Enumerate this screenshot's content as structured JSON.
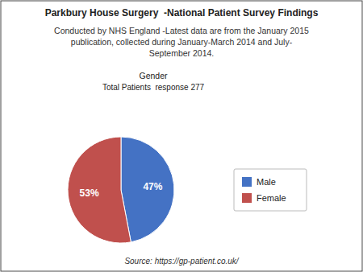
{
  "chart_data": {
    "type": "pie",
    "title": "Parkbury House Surgery  -National Patient Survey Findings",
    "subtitle": "Conducted by NHS England -Latest data are from the January 2015\npublication, collected during January-March 2014 and July-\nSeptember 2014.",
    "annotations": [
      "Gender",
      "Total Patients  response 277"
    ],
    "source": "Source: https://gp-patient.co.uk/",
    "categories": [
      "Male",
      "Female"
    ],
    "values": [
      47,
      53
    ],
    "value_labels": [
      "47%",
      "53%"
    ],
    "colors": [
      "#4472C4",
      "#C0504D"
    ],
    "data_labels": true,
    "legend": "right"
  }
}
